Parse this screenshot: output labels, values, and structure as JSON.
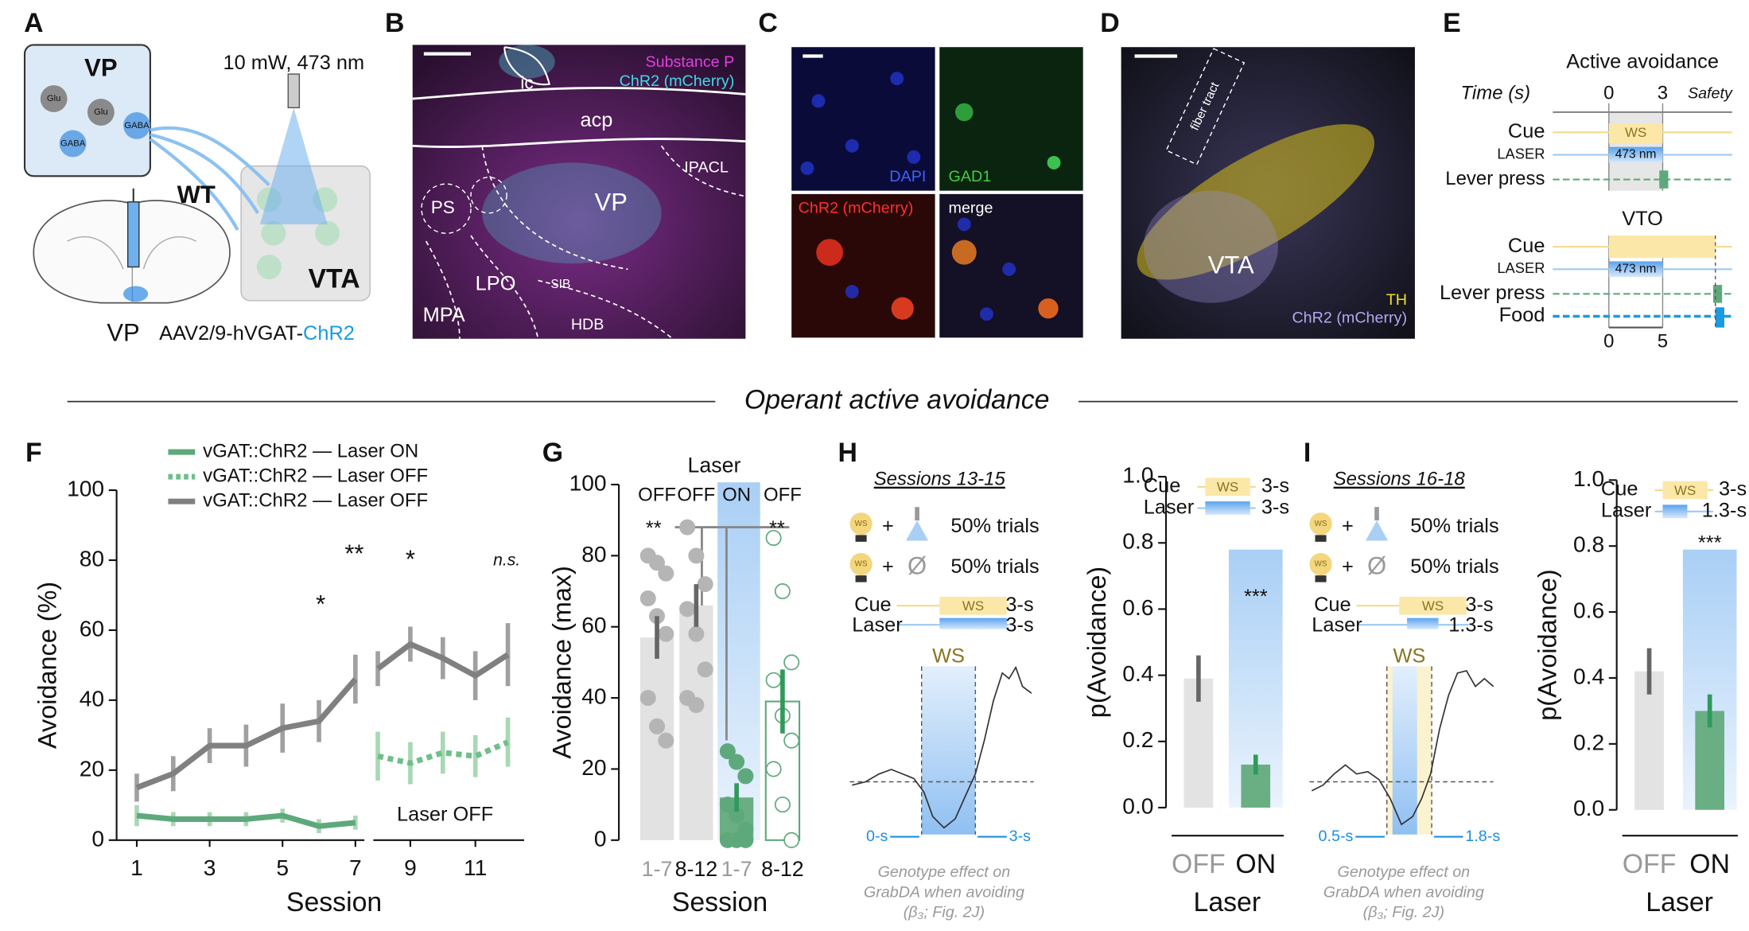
{
  "panels": {
    "A": {
      "letter": "A",
      "vp": "VP",
      "cells": [
        "Glu",
        "Glu",
        "GABA",
        "GABA"
      ],
      "laser": "10 mW, 473 nm",
      "wt": "WT",
      "vta": "VTA",
      "target": "VP",
      "virus": "AAV2/9-hVGAT-",
      "virus_opsin": "ChR2"
    },
    "B": {
      "letter": "B",
      "stains": [
        "Substance P",
        "ChR2 (mCherry)"
      ],
      "regions": [
        "ic",
        "acp",
        "IPACL",
        "PS",
        "VP",
        "LPO",
        "SIB",
        "MPA",
        "HDB"
      ]
    },
    "C": {
      "letter": "C",
      "channels": [
        "DAPI",
        "GAD1",
        "ChR2 (mCherry)",
        "merge"
      ]
    },
    "D": {
      "letter": "D",
      "tract": "fiber tract",
      "region": "VTA",
      "stains": [
        "TH",
        "ChR2 (mCherry)"
      ]
    },
    "E": {
      "letter": "E",
      "protocols": [
        {
          "title": "Active avoidance",
          "time_label": "Time (s)",
          "ticks": [
            "0",
            "3"
          ],
          "window": "Safety",
          "rows": [
            "Cue",
            "LASER",
            "Lever press"
          ],
          "cue": "WS",
          "laser": "473 nm"
        },
        {
          "title": "VTO",
          "rows": [
            "Cue",
            "LASER",
            "Lever press",
            "Food"
          ],
          "laser": "473 nm",
          "ticks": [
            "0",
            "5"
          ]
        }
      ]
    },
    "section": "Operant active avoidance",
    "H": {
      "letter": "H",
      "sessions": "Sessions 13-15",
      "bulbs": [
        "WS",
        "WS"
      ],
      "plus": [
        "+",
        "+"
      ],
      "null": "Ø",
      "trials": [
        "50% trials",
        "50% trials"
      ],
      "protocol": {
        "rows": [
          "Cue",
          "Laser"
        ],
        "cue": "WS",
        "durations": [
          "3-s",
          "3-s"
        ]
      },
      "trace": {
        "window": "WS",
        "start": "0-s",
        "end": "3-s"
      },
      "caption": [
        "Genotype effect on",
        "GrabDA when avoiding",
        "(β₃; Fig. 2J)"
      ]
    },
    "I": {
      "letter": "I",
      "sessions": "Sessions 16-18",
      "bulbs": [
        "WS",
        "WS"
      ],
      "plus": [
        "+",
        "+"
      ],
      "null": "Ø",
      "trials": [
        "50% trials",
        "50% trials"
      ],
      "protocol": {
        "rows": [
          "Cue",
          "Laser"
        ],
        "cue": "WS",
        "durations": [
          "3-s",
          "1.3-s"
        ]
      },
      "trace": {
        "window": "WS",
        "start": "0.5-s",
        "end": "1.8-s"
      },
      "caption": [
        "Genotype effect on",
        "GrabDA when avoiding",
        "(β₃; Fig. 2J)"
      ]
    }
  },
  "chart_data": [
    {
      "type": "line",
      "panel": "F",
      "xlabel": "Session",
      "ylabel": "Avoidance (%)",
      "x": [
        1,
        2,
        3,
        4,
        5,
        6,
        7,
        8,
        9,
        10,
        11,
        12
      ],
      "series": [
        {
          "name": "vGAT::ChR2 — Laser ON",
          "color": "#5ea97c",
          "dashed": false,
          "values": [
            7,
            6,
            6,
            6,
            7,
            4,
            5,
            null,
            null,
            null,
            null,
            null
          ],
          "errors": [
            3,
            2,
            2,
            2,
            2,
            2,
            2,
            null,
            null,
            null,
            null,
            null
          ]
        },
        {
          "name": "vGAT::ChR2 — Laser OFF",
          "color": "#6fbf8a",
          "dashed": true,
          "values": [
            null,
            null,
            null,
            null,
            null,
            null,
            null,
            24,
            22,
            25,
            24,
            28
          ],
          "errors": [
            null,
            null,
            null,
            null,
            null,
            null,
            null,
            7,
            6,
            6,
            6,
            7
          ]
        },
        {
          "name": "vGAT::ChR2 — Laser OFF",
          "color": "#808080",
          "dashed": false,
          "values": [
            15,
            19,
            27,
            27,
            32,
            34,
            46,
            49,
            56,
            52,
            47,
            53
          ],
          "errors": [
            4,
            5,
            5,
            6,
            7,
            6,
            7,
            5,
            5,
            6,
            7,
            9
          ]
        }
      ],
      "xlim": [
        0.5,
        12.5
      ],
      "xticks": [
        1,
        3,
        5,
        7,
        9,
        11
      ],
      "ylim": [
        0,
        100
      ],
      "yticks": [
        0,
        20,
        40,
        60,
        80,
        100
      ],
      "annotations": [
        "*",
        "**",
        "*",
        "n.s.",
        "Laser OFF"
      ]
    },
    {
      "type": "bar",
      "panel": "G",
      "xlabel": "Session",
      "ylabel": "Avoidance (max)",
      "header": "Laser",
      "conditions": [
        "OFF",
        "OFF",
        "ON",
        "OFF"
      ],
      "categories": [
        "1-7",
        "8-12",
        "1-7",
        "8-12"
      ],
      "values": [
        57,
        66,
        12,
        39
      ],
      "errors": [
        6,
        6,
        4,
        9
      ],
      "points": [
        [
          80,
          78,
          75,
          68,
          63,
          58,
          40,
          32,
          28
        ],
        [
          88,
          80,
          72,
          65,
          58,
          48,
          40,
          38
        ],
        [
          25,
          22,
          18,
          10,
          7,
          3,
          0,
          0,
          0
        ],
        [
          85,
          70,
          50,
          45,
          35,
          28,
          20,
          10,
          0
        ]
      ],
      "colors": [
        "#e2e2e2",
        "#e2e2e2",
        "#6aae84",
        "#ffffff"
      ],
      "point_colors": [
        "#b5b5b5",
        "#b5b5b5",
        "#5ea97c",
        "#5ea97c"
      ],
      "ylim": [
        0,
        100
      ],
      "yticks": [
        0,
        20,
        40,
        60,
        80,
        100
      ],
      "annotations": [
        "**",
        "**"
      ]
    },
    {
      "type": "bar",
      "panel": "H",
      "xlabel": "Laser",
      "ylabel": "p(Avoidance)",
      "categories": [
        "OFF",
        "ON"
      ],
      "values": [
        0.39,
        0.13
      ],
      "errors": [
        0.07,
        0.03
      ],
      "colors": [
        "#e3e3e3",
        "#6aae84"
      ],
      "ylim": [
        0,
        1
      ],
      "yticks": [
        {
          "value": 0,
          "label": "0.0"
        },
        0.2,
        0.4,
        0.6,
        0.8,
        {
          "value": 1,
          "label": "1.0"
        }
      ],
      "annotations": [
        "***"
      ],
      "legend": {
        "rows": [
          "Cue",
          "Laser"
        ],
        "cue": "WS",
        "durations": [
          "3-s",
          "3-s"
        ]
      }
    },
    {
      "type": "bar",
      "panel": "I",
      "xlabel": "Laser",
      "ylabel": "p(Avoidance)",
      "categories": [
        "OFF",
        "ON"
      ],
      "values": [
        0.42,
        0.3
      ],
      "errors": [
        0.07,
        0.05
      ],
      "colors": [
        "#e3e3e3",
        "#6aae84"
      ],
      "ylim": [
        0,
        1
      ],
      "yticks": [
        {
          "value": 0,
          "label": "0.0"
        },
        0.2,
        0.4,
        0.6,
        0.8,
        {
          "value": 1,
          "label": "1.0"
        }
      ],
      "annotations": [
        "***"
      ],
      "legend": {
        "rows": [
          "Cue",
          "Laser"
        ],
        "cue": "WS",
        "durations": [
          "3-s",
          "1.3-s"
        ]
      }
    }
  ]
}
